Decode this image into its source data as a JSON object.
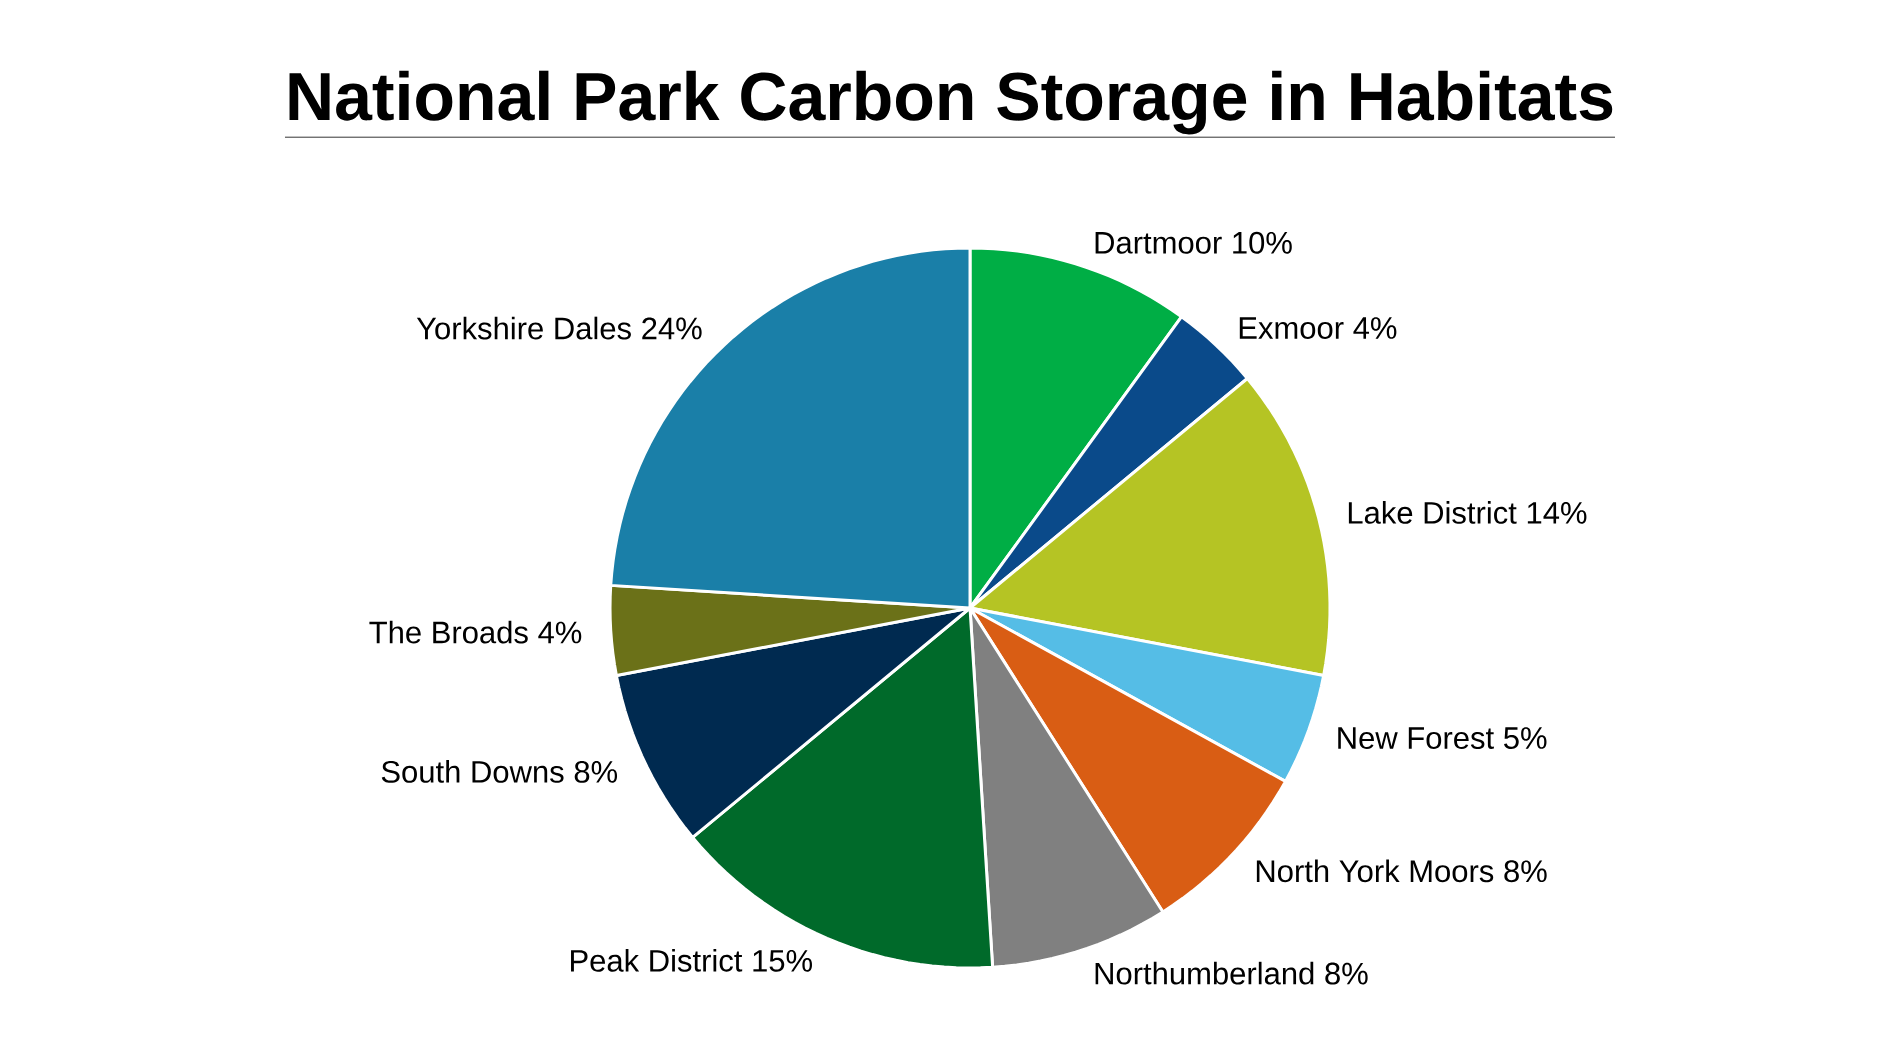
{
  "chart_data": {
    "type": "pie",
    "title": "National Park Carbon Storage in Habitats",
    "categories": [
      "Dartmoor",
      "Exmoor",
      "Lake District",
      "New Forest",
      "North York Moors",
      "Northumberland",
      "Peak District",
      "South Downs",
      "The Broads",
      "Yorkshire Dales"
    ],
    "values": [
      10,
      4,
      14,
      5,
      8,
      8,
      15,
      8,
      4,
      24
    ],
    "value_labels": [
      "10%",
      "4%",
      "14%",
      "5%",
      "8%",
      "8%",
      "15%",
      "8%",
      "4%",
      "24%"
    ],
    "colors": [
      "#00ae45",
      "#0a4a8a",
      "#b5c424",
      "#55bde6",
      "#d95d14",
      "#808080",
      "#006a2a",
      "#002a50",
      "#6b7118",
      "#1a7fa8"
    ]
  }
}
